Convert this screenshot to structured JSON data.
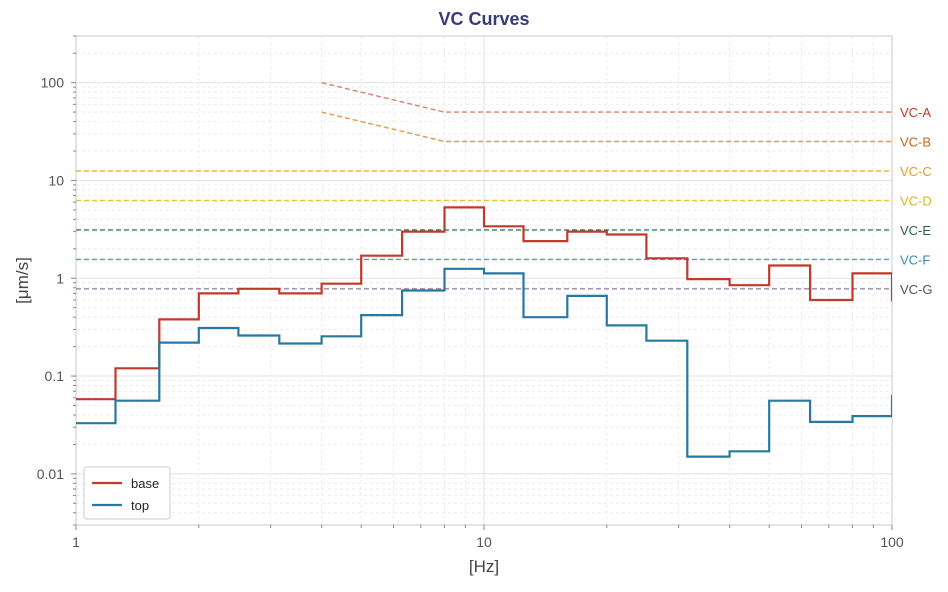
{
  "chart_data": {
    "type": "line",
    "title": "VC Curves",
    "xlabel": "[Hz]",
    "ylabel": "[μm/s]",
    "xscale": "log",
    "yscale": "log",
    "xlim": [
      1,
      100
    ],
    "ylim": [
      0.003,
      300
    ],
    "grid": true,
    "legend": "bottom-left",
    "x_ticks": [
      {
        "value": 1,
        "label": "1"
      },
      {
        "value": 10,
        "label": "10"
      },
      {
        "value": 100,
        "label": "100"
      }
    ],
    "y_ticks": [
      {
        "value": 0.01,
        "label": "0.01"
      },
      {
        "value": 0.1,
        "label": "0.1"
      },
      {
        "value": 1,
        "label": "1"
      },
      {
        "value": 10,
        "label": "10"
      },
      {
        "value": 100,
        "label": "100"
      }
    ],
    "band_edges": [
      1,
      1.25,
      1.6,
      2,
      2.5,
      3.15,
      4,
      5,
      6.3,
      8,
      10,
      12.5,
      16,
      20,
      25,
      31.5,
      40,
      50,
      63,
      80,
      100
    ],
    "series": [
      {
        "name": "base",
        "color": "#c0392b",
        "step": true,
        "values": [
          0.058,
          0.12,
          0.38,
          0.7,
          0.78,
          0.7,
          0.88,
          1.7,
          3.0,
          5.3,
          3.4,
          2.4,
          3.0,
          2.8,
          1.6,
          0.98,
          0.85,
          1.35,
          0.6,
          1.12
        ]
      },
      {
        "name": "top",
        "color": "#2878a0",
        "step": true,
        "values": [
          0.033,
          0.056,
          0.22,
          0.31,
          0.26,
          0.215,
          0.255,
          0.42,
          0.75,
          1.25,
          1.12,
          0.4,
          0.66,
          0.33,
          0.23,
          0.015,
          0.017,
          0.056,
          0.034,
          0.039
        ]
      }
    ],
    "curve_end_values": {
      "base": 0.58,
      "top": 0.064
    },
    "reference_curves": [
      {
        "name": "VC-A",
        "color": "#d9806e",
        "points": [
          [
            4,
            100
          ],
          [
            8,
            50
          ],
          [
            100,
            50
          ]
        ]
      },
      {
        "name": "VC-B",
        "color": "#e8964a",
        "points": [
          [
            4,
            50
          ],
          [
            8,
            25
          ],
          [
            100,
            25
          ]
        ]
      },
      {
        "name": "VC-C",
        "color": "#efb04a",
        "points": [
          [
            1,
            12.5
          ],
          [
            100,
            12.5
          ]
        ]
      },
      {
        "name": "VC-D",
        "color": "#e0c43a",
        "points": [
          [
            1,
            6.25
          ],
          [
            100,
            6.25
          ]
        ]
      },
      {
        "name": "VC-E",
        "color": "#3a7a6a",
        "points": [
          [
            1,
            3.12
          ],
          [
            100,
            3.12
          ]
        ]
      },
      {
        "name": "VC-F",
        "color": "#4aa0bc",
        "points": [
          [
            1,
            1.56
          ],
          [
            100,
            1.56
          ]
        ]
      },
      {
        "name": "VC-G",
        "color": "#9a88a8",
        "points": [
          [
            1,
            0.78
          ],
          [
            100,
            0.78
          ]
        ]
      }
    ],
    "reference_label_colors": {
      "VC-A": "#c0392b",
      "VC-B": "#c26a10",
      "VC-C": "#e0a020",
      "VC-D": "#d4b820",
      "VC-E": "#2e5e52",
      "VC-F": "#2e8cb0",
      "VC-G": "#555555"
    },
    "title_color": "#3a3a78"
  }
}
